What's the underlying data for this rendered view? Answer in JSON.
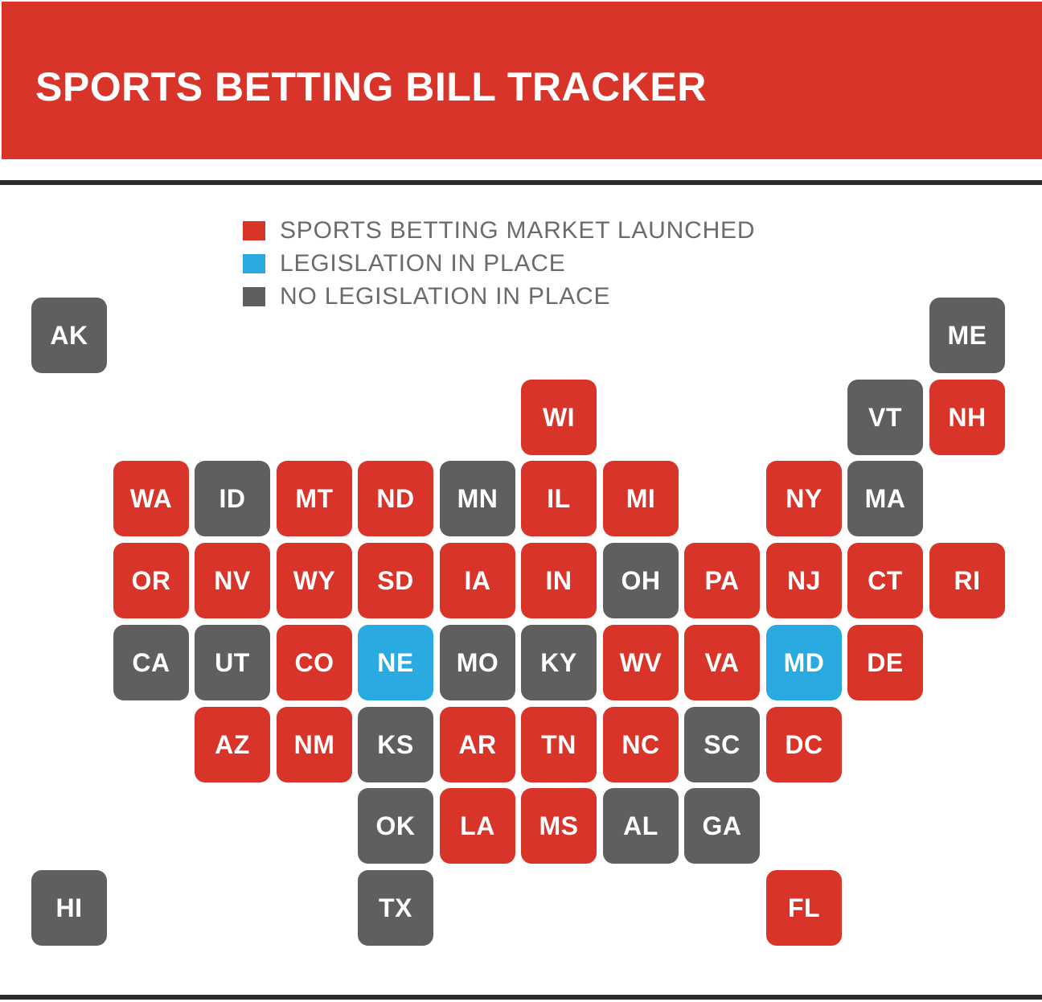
{
  "title": "SPORTS BETTING BILL TRACKER",
  "colors": {
    "launched": "#d93429",
    "legislation": "#29aae1",
    "none": "#5f5f5f"
  },
  "legend": [
    {
      "status": "launched",
      "label": "SPORTS BETTING MARKET LAUNCHED"
    },
    {
      "status": "legislation",
      "label": "LEGISLATION IN PLACE"
    },
    {
      "status": "none",
      "label": "NO LEGISLATION IN PLACE"
    }
  ],
  "states": [
    {
      "code": "AK",
      "row": 0,
      "col": 0,
      "status": "none"
    },
    {
      "code": "ME",
      "row": 0,
      "col": 11,
      "status": "none"
    },
    {
      "code": "WI",
      "row": 1,
      "col": 6,
      "status": "launched"
    },
    {
      "code": "VT",
      "row": 1,
      "col": 10,
      "status": "none"
    },
    {
      "code": "NH",
      "row": 1,
      "col": 11,
      "status": "launched"
    },
    {
      "code": "WA",
      "row": 2,
      "col": 1,
      "status": "launched"
    },
    {
      "code": "ID",
      "row": 2,
      "col": 2,
      "status": "none"
    },
    {
      "code": "MT",
      "row": 2,
      "col": 3,
      "status": "launched"
    },
    {
      "code": "ND",
      "row": 2,
      "col": 4,
      "status": "launched"
    },
    {
      "code": "MN",
      "row": 2,
      "col": 5,
      "status": "none"
    },
    {
      "code": "IL",
      "row": 2,
      "col": 6,
      "status": "launched"
    },
    {
      "code": "MI",
      "row": 2,
      "col": 7,
      "status": "launched"
    },
    {
      "code": "NY",
      "row": 2,
      "col": 9,
      "status": "launched"
    },
    {
      "code": "MA",
      "row": 2,
      "col": 10,
      "status": "none"
    },
    {
      "code": "OR",
      "row": 3,
      "col": 1,
      "status": "launched"
    },
    {
      "code": "NV",
      "row": 3,
      "col": 2,
      "status": "launched"
    },
    {
      "code": "WY",
      "row": 3,
      "col": 3,
      "status": "launched"
    },
    {
      "code": "SD",
      "row": 3,
      "col": 4,
      "status": "launched"
    },
    {
      "code": "IA",
      "row": 3,
      "col": 5,
      "status": "launched"
    },
    {
      "code": "IN",
      "row": 3,
      "col": 6,
      "status": "launched"
    },
    {
      "code": "OH",
      "row": 3,
      "col": 7,
      "status": "none"
    },
    {
      "code": "PA",
      "row": 3,
      "col": 8,
      "status": "launched"
    },
    {
      "code": "NJ",
      "row": 3,
      "col": 9,
      "status": "launched"
    },
    {
      "code": "CT",
      "row": 3,
      "col": 10,
      "status": "launched"
    },
    {
      "code": "RI",
      "row": 3,
      "col": 11,
      "status": "launched"
    },
    {
      "code": "CA",
      "row": 4,
      "col": 1,
      "status": "none"
    },
    {
      "code": "UT",
      "row": 4,
      "col": 2,
      "status": "none"
    },
    {
      "code": "CO",
      "row": 4,
      "col": 3,
      "status": "launched"
    },
    {
      "code": "NE",
      "row": 4,
      "col": 4,
      "status": "legislation"
    },
    {
      "code": "MO",
      "row": 4,
      "col": 5,
      "status": "none"
    },
    {
      "code": "KY",
      "row": 4,
      "col": 6,
      "status": "none"
    },
    {
      "code": "WV",
      "row": 4,
      "col": 7,
      "status": "launched"
    },
    {
      "code": "VA",
      "row": 4,
      "col": 8,
      "status": "launched"
    },
    {
      "code": "MD",
      "row": 4,
      "col": 9,
      "status": "legislation"
    },
    {
      "code": "DE",
      "row": 4,
      "col": 10,
      "status": "launched"
    },
    {
      "code": "AZ",
      "row": 5,
      "col": 2,
      "status": "launched"
    },
    {
      "code": "NM",
      "row": 5,
      "col": 3,
      "status": "launched"
    },
    {
      "code": "KS",
      "row": 5,
      "col": 4,
      "status": "none"
    },
    {
      "code": "AR",
      "row": 5,
      "col": 5,
      "status": "launched"
    },
    {
      "code": "TN",
      "row": 5,
      "col": 6,
      "status": "launched"
    },
    {
      "code": "NC",
      "row": 5,
      "col": 7,
      "status": "launched"
    },
    {
      "code": "SC",
      "row": 5,
      "col": 8,
      "status": "none"
    },
    {
      "code": "DC",
      "row": 5,
      "col": 9,
      "status": "launched"
    },
    {
      "code": "OK",
      "row": 6,
      "col": 4,
      "status": "none"
    },
    {
      "code": "LA",
      "row": 6,
      "col": 5,
      "status": "launched"
    },
    {
      "code": "MS",
      "row": 6,
      "col": 6,
      "status": "launched"
    },
    {
      "code": "AL",
      "row": 6,
      "col": 7,
      "status": "none"
    },
    {
      "code": "GA",
      "row": 6,
      "col": 8,
      "status": "none"
    },
    {
      "code": "HI",
      "row": 7,
      "col": 0,
      "status": "none"
    },
    {
      "code": "TX",
      "row": 7,
      "col": 4,
      "status": "none"
    },
    {
      "code": "FL",
      "row": 7,
      "col": 9,
      "status": "launched"
    }
  ]
}
